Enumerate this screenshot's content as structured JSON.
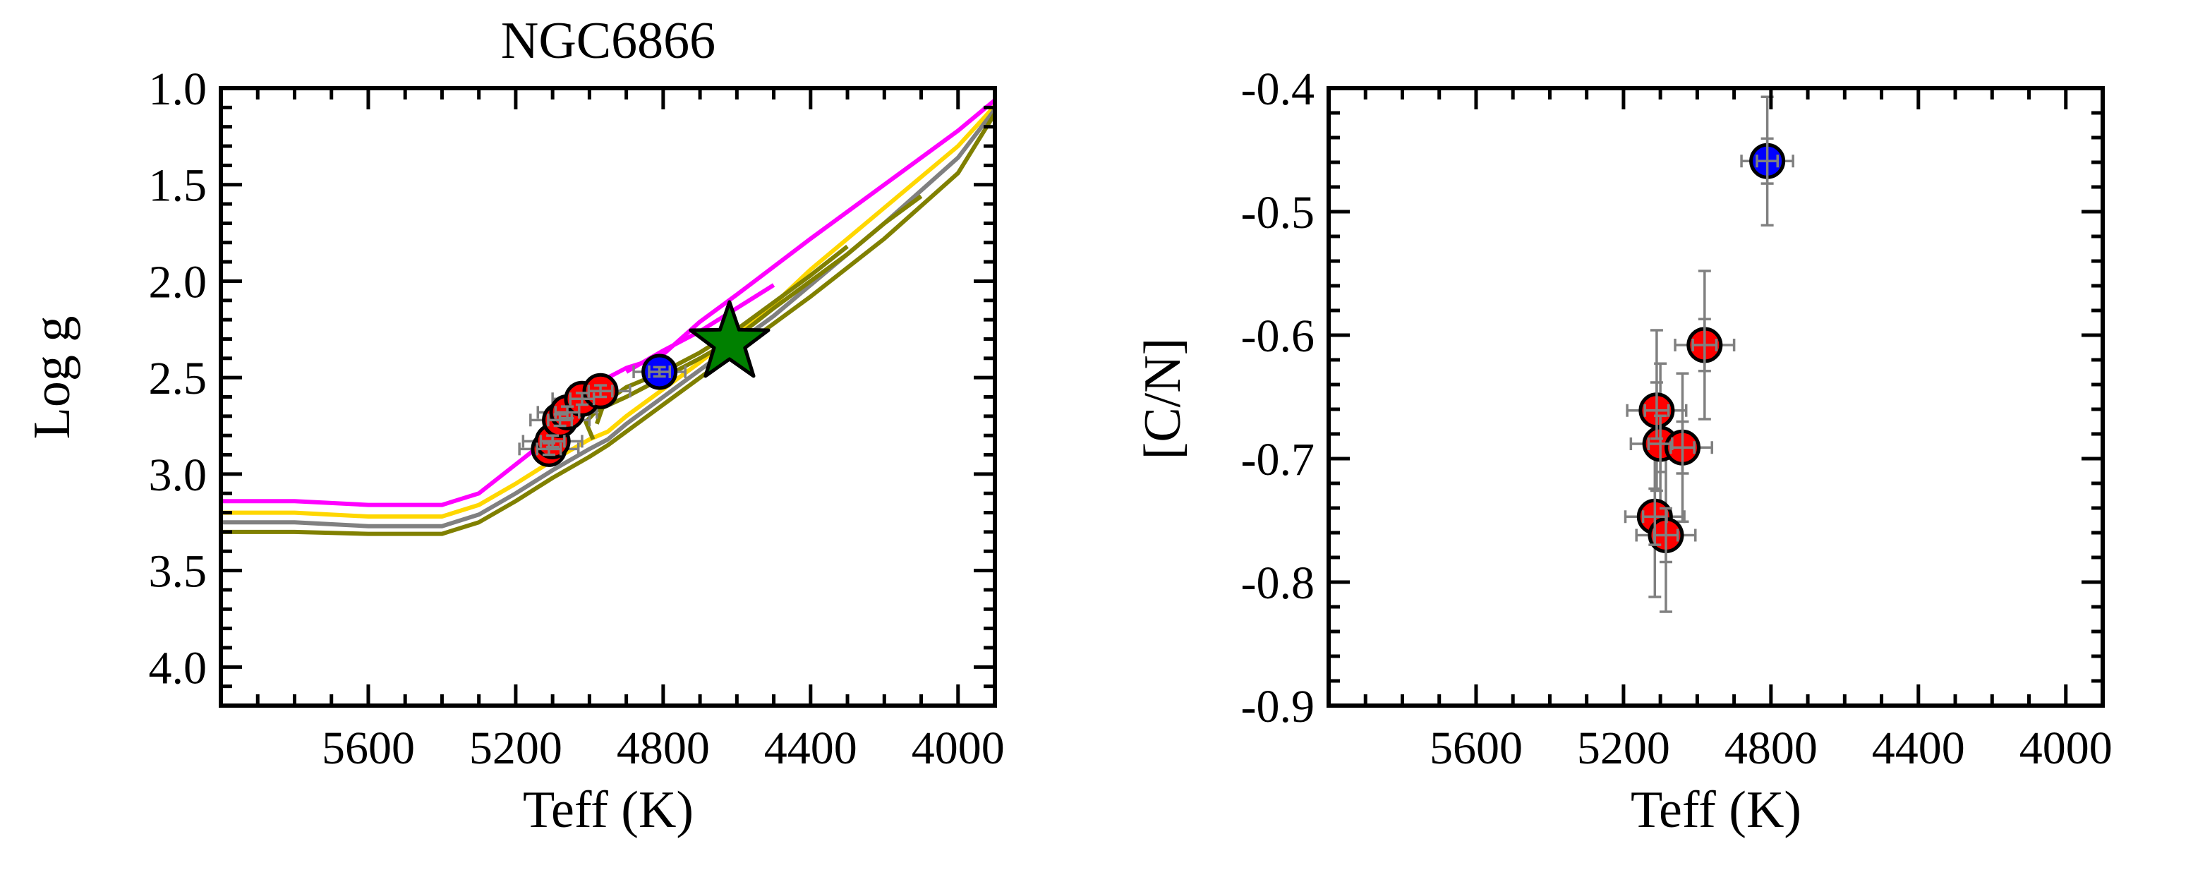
{
  "chart_data": [
    {
      "type": "line",
      "title": "NGC6866",
      "xlabel": "Teff (K)",
      "ylabel": "Log g",
      "xlim": [
        6000,
        3900
      ],
      "ylim": [
        4.2,
        1.0
      ],
      "x_ticks": [
        5600,
        5200,
        4800,
        4400,
        4000
      ],
      "y_ticks": [
        1.0,
        1.5,
        2.0,
        2.5,
        3.0,
        3.5,
        4.0
      ],
      "x_tick_labels": [
        "5600",
        "5200",
        "4800",
        "4400",
        "4000"
      ],
      "y_tick_labels": [
        "1.0",
        "1.5",
        "2.0",
        "2.5",
        "3.0",
        "3.5",
        "4.0"
      ],
      "isochrones": [
        {
          "color": "#ff00ff",
          "points": [
            [
              6000,
              3.14
            ],
            [
              5800,
              3.14
            ],
            [
              5600,
              3.16
            ],
            [
              5400,
              3.16
            ],
            [
              5300,
              3.1
            ],
            [
              5200,
              2.95
            ],
            [
              5120,
              2.83
            ],
            [
              5070,
              2.72
            ],
            [
              5050,
              2.65
            ],
            [
              5000,
              2.58
            ],
            [
              4950,
              2.5
            ],
            [
              4900,
              2.45
            ],
            [
              4850,
              2.42
            ],
            [
              4800,
              2.38
            ],
            [
              4700,
              2.21
            ],
            [
              4600,
              2.07
            ],
            [
              4400,
              1.78
            ],
            [
              4200,
              1.5
            ],
            [
              4000,
              1.22
            ],
            [
              3880,
              1.03
            ]
          ]
        },
        {
          "color": "#ff00ff",
          "points": [
            [
              4900,
              2.47
            ],
            [
              4800,
              2.36
            ],
            [
              4700,
              2.26
            ],
            [
              4600,
              2.14
            ],
            [
              4500,
              2.02
            ]
          ]
        },
        {
          "color": "#ffd700",
          "points": [
            [
              6000,
              3.2
            ],
            [
              5800,
              3.2
            ],
            [
              5600,
              3.22
            ],
            [
              5400,
              3.22
            ],
            [
              5300,
              3.16
            ],
            [
              5200,
              3.05
            ],
            [
              5100,
              2.93
            ],
            [
              5000,
              2.82
            ],
            [
              4950,
              2.78
            ],
            [
              4900,
              2.7
            ],
            [
              4800,
              2.56
            ],
            [
              4700,
              2.42
            ],
            [
              4600,
              2.27
            ],
            [
              4500,
              2.12
            ],
            [
              4400,
              1.94
            ],
            [
              4200,
              1.62
            ],
            [
              4000,
              1.3
            ],
            [
              3880,
              1.05
            ]
          ]
        },
        {
          "color": "#808080",
          "points": [
            [
              6000,
              3.25
            ],
            [
              5800,
              3.25
            ],
            [
              5600,
              3.27
            ],
            [
              5400,
              3.27
            ],
            [
              5300,
              3.21
            ],
            [
              5200,
              3.1
            ],
            [
              5100,
              2.98
            ],
            [
              5000,
              2.87
            ],
            [
              4950,
              2.82
            ],
            [
              4900,
              2.74
            ],
            [
              4800,
              2.6
            ],
            [
              4700,
              2.46
            ],
            [
              4600,
              2.32
            ],
            [
              4500,
              2.18
            ],
            [
              4400,
              2.02
            ],
            [
              4200,
              1.7
            ],
            [
              4000,
              1.36
            ],
            [
              3880,
              1.06
            ]
          ]
        },
        {
          "color": "#808000",
          "points": [
            [
              6000,
              3.3
            ],
            [
              5800,
              3.3
            ],
            [
              5600,
              3.31
            ],
            [
              5400,
              3.31
            ],
            [
              5300,
              3.25
            ],
            [
              5200,
              3.14
            ],
            [
              5100,
              3.02
            ],
            [
              5000,
              2.91
            ],
            [
              4950,
              2.85
            ],
            [
              4900,
              2.78
            ],
            [
              4800,
              2.64
            ],
            [
              4700,
              2.5
            ],
            [
              4600,
              2.36
            ],
            [
              4500,
              2.22
            ],
            [
              4400,
              2.08
            ],
            [
              4200,
              1.78
            ],
            [
              4000,
              1.44
            ],
            [
              3880,
              1.07
            ]
          ]
        },
        {
          "color": "#808000",
          "points": [
            [
              4990,
              2.82
            ],
            [
              5010,
              2.73
            ],
            [
              4980,
              2.67
            ],
            [
              4900,
              2.6
            ],
            [
              4800,
              2.5
            ],
            [
              4700,
              2.4
            ],
            [
              4600,
              2.29
            ],
            [
              4500,
              2.14
            ],
            [
              4400,
              2.0
            ],
            [
              4300,
              1.86
            ],
            [
              4200,
              1.7
            ],
            [
              4100,
              1.56
            ]
          ]
        },
        {
          "color": "#808000",
          "points": [
            [
              4980,
              2.74
            ],
            [
              4960,
              2.63
            ],
            [
              4900,
              2.55
            ],
            [
              4800,
              2.47
            ],
            [
              4700,
              2.37
            ],
            [
              4600,
              2.25
            ],
            [
              4500,
              2.11
            ],
            [
              4400,
              1.97
            ],
            [
              4300,
              1.82
            ]
          ]
        }
      ],
      "stars": [
        {
          "teff": 5110,
          "logg": 2.87,
          "eteff": 80,
          "elogg": 0.05,
          "color": "#ff0000"
        },
        {
          "teff": 5100,
          "logg": 2.83,
          "eteff": 80,
          "elogg": 0.05,
          "color": "#ff0000"
        },
        {
          "teff": 5080,
          "logg": 2.72,
          "eteff": 80,
          "elogg": 0.05,
          "color": "#ff0000"
        },
        {
          "teff": 5060,
          "logg": 2.68,
          "eteff": 80,
          "elogg": 0.05,
          "color": "#ff0000"
        },
        {
          "teff": 5020,
          "logg": 2.61,
          "eteff": 80,
          "elogg": 0.05,
          "color": "#ff0000"
        },
        {
          "teff": 4970,
          "logg": 2.57,
          "eteff": 80,
          "elogg": 0.05,
          "color": "#ff0000"
        },
        {
          "teff": 4810,
          "logg": 2.47,
          "eteff": 70,
          "elogg": 0.04,
          "color": "#0000ff"
        }
      ],
      "marker": {
        "teff": 4620,
        "logg": 2.32,
        "color": "#008000",
        "shape": "star"
      }
    },
    {
      "type": "scatter",
      "title": "",
      "xlabel": "Teff (K)",
      "ylabel": "[C/N]",
      "xlim": [
        6000,
        3900
      ],
      "ylim": [
        -0.9,
        -0.4
      ],
      "x_ticks": [
        5600,
        5200,
        4800,
        4400,
        4000
      ],
      "y_ticks": [
        -0.4,
        -0.5,
        -0.6,
        -0.7,
        -0.8,
        -0.9
      ],
      "x_tick_labels": [
        "5600",
        "5200",
        "4800",
        "4400",
        "4000"
      ],
      "y_tick_labels": [
        "-0.4",
        "-0.5",
        "-0.6",
        "-0.7",
        "-0.8",
        "-0.9"
      ],
      "points": [
        {
          "teff": 5110,
          "cn": -0.661,
          "eteff": 80,
          "ecn": 0.065,
          "color": "#ff0000"
        },
        {
          "teff": 5100,
          "cn": -0.688,
          "eteff": 80,
          "ecn": 0.065,
          "color": "#ff0000"
        },
        {
          "teff": 5040,
          "cn": -0.691,
          "eteff": 80,
          "ecn": 0.06,
          "color": "#ff0000"
        },
        {
          "teff": 4980,
          "cn": -0.608,
          "eteff": 80,
          "ecn": 0.06,
          "color": "#ff0000"
        },
        {
          "teff": 5115,
          "cn": -0.747,
          "eteff": 80,
          "ecn": 0.065,
          "color": "#ff0000"
        },
        {
          "teff": 5085,
          "cn": -0.762,
          "eteff": 80,
          "ecn": 0.062,
          "color": "#ff0000"
        },
        {
          "teff": 4810,
          "cn": -0.459,
          "eteff": 70,
          "ecn": 0.052,
          "color": "#0000ff"
        }
      ]
    }
  ]
}
